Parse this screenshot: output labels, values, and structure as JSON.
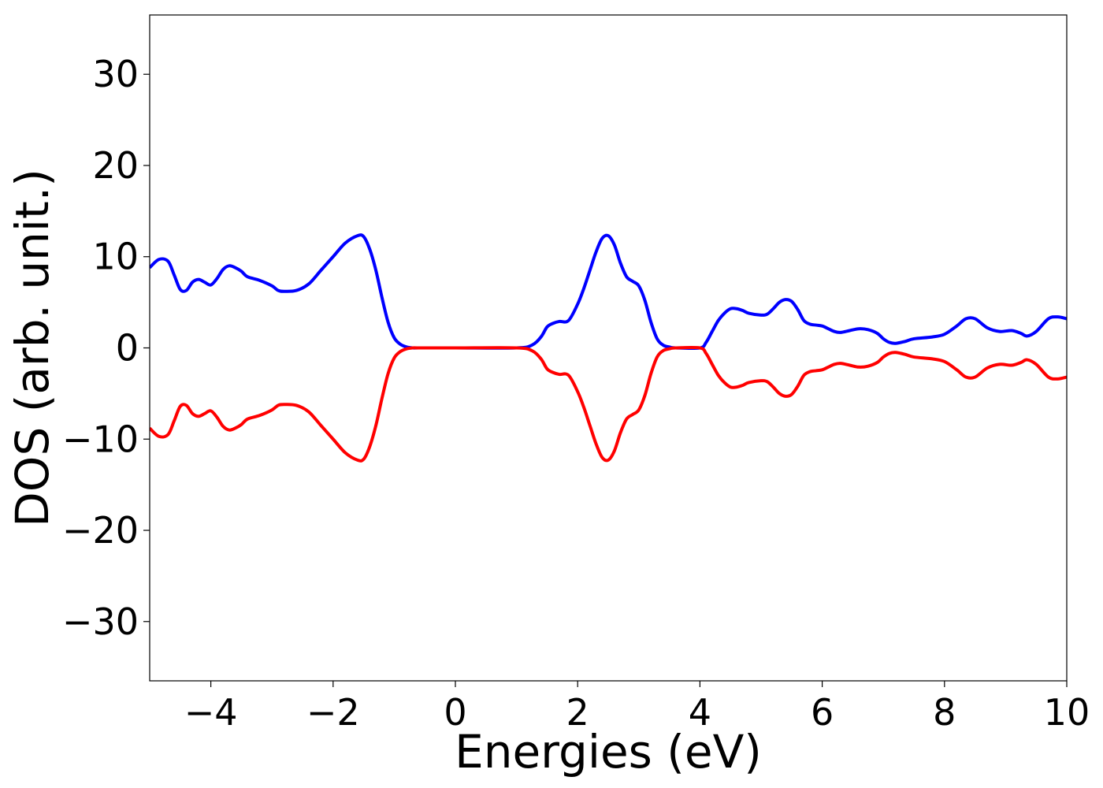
{
  "chart_data": {
    "type": "line",
    "xlabel": "Energies (eV)",
    "ylabel": "DOS (arb. unit.)",
    "xlim": [
      -5,
      10
    ],
    "ylim": [
      -36.5,
      36.5
    ],
    "xticks": [
      -4,
      -2,
      0,
      2,
      4,
      6,
      8,
      10
    ],
    "yticks": [
      -30,
      -20,
      -10,
      0,
      10,
      20,
      30
    ],
    "xtick_labels": [
      "−4",
      "−2",
      "0",
      "2",
      "4",
      "6",
      "8",
      "10"
    ],
    "ytick_labels": [
      "−30",
      "−20",
      "−10",
      "0",
      "10",
      "20",
      "30"
    ],
    "grid": false,
    "series": [
      {
        "color": "#0000ff",
        "x": [
          -5.0,
          -4.85,
          -4.7,
          -4.6,
          -4.5,
          -4.4,
          -4.3,
          -4.2,
          -4.1,
          -4.0,
          -3.9,
          -3.8,
          -3.7,
          -3.6,
          -3.5,
          -3.4,
          -3.2,
          -3.0,
          -2.9,
          -2.8,
          -2.6,
          -2.4,
          -2.2,
          -2.0,
          -1.8,
          -1.6,
          -1.5,
          -1.4,
          -1.3,
          -1.2,
          -1.1,
          -1.0,
          -0.9,
          -0.8,
          -0.7,
          -0.6,
          0.0,
          1.0,
          1.25,
          1.4,
          1.5,
          1.6,
          1.7,
          1.85,
          2.0,
          2.1,
          2.2,
          2.3,
          2.4,
          2.5,
          2.6,
          2.7,
          2.8,
          2.9,
          3.0,
          3.1,
          3.2,
          3.3,
          3.4,
          3.5,
          3.6,
          4.0,
          4.1,
          4.2,
          4.3,
          4.4,
          4.5,
          4.6,
          4.7,
          4.8,
          5.0,
          5.1,
          5.2,
          5.3,
          5.4,
          5.5,
          5.6,
          5.7,
          5.8,
          5.9,
          6.0,
          6.1,
          6.2,
          6.3,
          6.45,
          6.6,
          6.75,
          6.9,
          7.0,
          7.1,
          7.2,
          7.35,
          7.5,
          7.8,
          8.0,
          8.2,
          8.35,
          8.5,
          8.7,
          8.9,
          9.1,
          9.25,
          9.35,
          9.5,
          9.7,
          9.85,
          10.0
        ],
        "y": [
          8.8,
          9.7,
          9.5,
          8.0,
          6.4,
          6.3,
          7.2,
          7.5,
          7.2,
          6.9,
          7.6,
          8.6,
          9.0,
          8.8,
          8.4,
          7.8,
          7.4,
          6.8,
          6.3,
          6.2,
          6.3,
          7.0,
          8.5,
          10.0,
          11.5,
          12.3,
          12.2,
          10.8,
          8.5,
          5.5,
          2.8,
          1.1,
          0.4,
          0.1,
          0.0,
          0.0,
          0.0,
          0.0,
          0.3,
          1.2,
          2.3,
          2.7,
          2.9,
          3.0,
          4.8,
          6.5,
          8.5,
          10.5,
          12.0,
          12.3,
          11.3,
          9.3,
          7.8,
          7.3,
          6.8,
          5.2,
          2.8,
          1.0,
          0.3,
          0.1,
          0.0,
          0.0,
          0.6,
          1.8,
          3.0,
          3.8,
          4.3,
          4.3,
          4.1,
          3.8,
          3.6,
          3.7,
          4.3,
          5.0,
          5.3,
          5.1,
          4.2,
          3.0,
          2.6,
          2.5,
          2.4,
          2.1,
          1.8,
          1.7,
          1.9,
          2.1,
          2.0,
          1.6,
          1.0,
          0.6,
          0.5,
          0.7,
          1.0,
          1.2,
          1.5,
          2.4,
          3.2,
          3.2,
          2.2,
          1.8,
          1.9,
          1.6,
          1.3,
          1.8,
          3.2,
          3.4,
          3.2
        ]
      },
      {
        "color": "#ff0000",
        "x": [
          -5.0,
          -4.85,
          -4.7,
          -4.6,
          -4.5,
          -4.4,
          -4.3,
          -4.2,
          -4.1,
          -4.0,
          -3.9,
          -3.8,
          -3.7,
          -3.6,
          -3.5,
          -3.4,
          -3.2,
          -3.0,
          -2.9,
          -2.8,
          -2.6,
          -2.4,
          -2.2,
          -2.0,
          -1.8,
          -1.6,
          -1.5,
          -1.4,
          -1.3,
          -1.2,
          -1.1,
          -1.0,
          -0.9,
          -0.8,
          -0.7,
          -0.6,
          0.0,
          1.0,
          1.25,
          1.4,
          1.5,
          1.6,
          1.7,
          1.85,
          2.0,
          2.1,
          2.2,
          2.3,
          2.4,
          2.5,
          2.6,
          2.7,
          2.8,
          2.9,
          3.0,
          3.1,
          3.2,
          3.3,
          3.4,
          3.5,
          3.6,
          4.0,
          4.1,
          4.2,
          4.3,
          4.4,
          4.5,
          4.6,
          4.7,
          4.8,
          5.0,
          5.1,
          5.2,
          5.3,
          5.4,
          5.5,
          5.6,
          5.7,
          5.8,
          5.9,
          6.0,
          6.1,
          6.2,
          6.3,
          6.45,
          6.6,
          6.75,
          6.9,
          7.0,
          7.1,
          7.2,
          7.35,
          7.5,
          7.8,
          8.0,
          8.2,
          8.35,
          8.5,
          8.7,
          8.9,
          9.1,
          9.25,
          9.35,
          9.5,
          9.7,
          9.85,
          10.0
        ],
        "y": [
          -8.8,
          -9.7,
          -9.5,
          -8.0,
          -6.4,
          -6.3,
          -7.2,
          -7.5,
          -7.2,
          -6.9,
          -7.6,
          -8.6,
          -9.0,
          -8.8,
          -8.4,
          -7.8,
          -7.4,
          -6.8,
          -6.3,
          -6.2,
          -6.3,
          -7.0,
          -8.5,
          -10.0,
          -11.5,
          -12.3,
          -12.2,
          -10.8,
          -8.5,
          -5.5,
          -2.8,
          -1.1,
          -0.4,
          -0.1,
          0.0,
          0.0,
          0.0,
          0.0,
          -0.3,
          -1.2,
          -2.3,
          -2.7,
          -2.9,
          -3.0,
          -4.8,
          -6.5,
          -8.5,
          -10.5,
          -12.0,
          -12.3,
          -11.3,
          -9.3,
          -7.8,
          -7.3,
          -6.8,
          -5.2,
          -2.8,
          -1.0,
          -0.3,
          -0.1,
          0.0,
          0.0,
          -0.6,
          -1.8,
          -3.0,
          -3.8,
          -4.3,
          -4.3,
          -4.1,
          -3.8,
          -3.6,
          -3.7,
          -4.3,
          -5.0,
          -5.3,
          -5.1,
          -4.2,
          -3.0,
          -2.6,
          -2.5,
          -2.4,
          -2.1,
          -1.8,
          -1.7,
          -1.9,
          -2.1,
          -2.0,
          -1.6,
          -1.0,
          -0.6,
          -0.5,
          -0.7,
          -1.0,
          -1.2,
          -1.5,
          -2.4,
          -3.2,
          -3.2,
          -2.2,
          -1.8,
          -1.9,
          -1.6,
          -1.3,
          -1.8,
          -3.2,
          -3.4,
          -3.2
        ]
      }
    ]
  }
}
